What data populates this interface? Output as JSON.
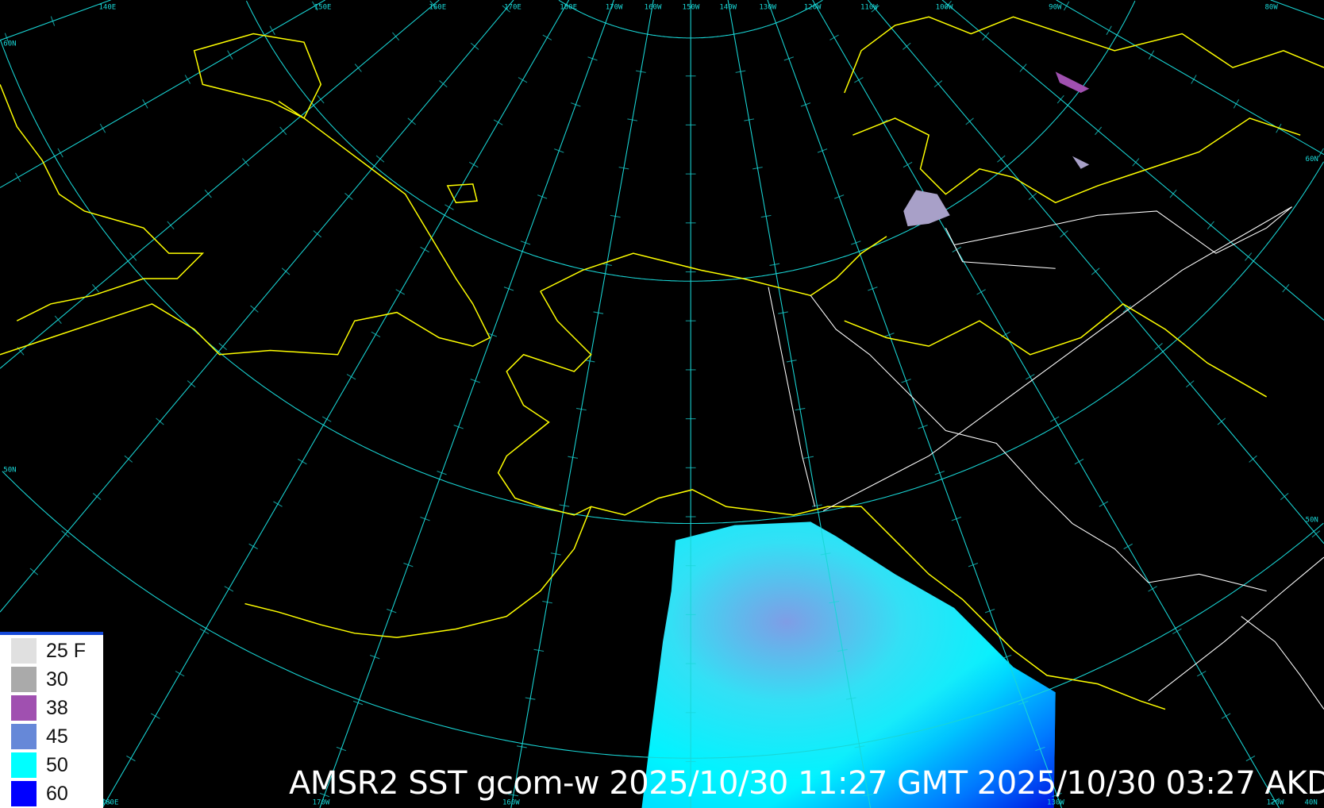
{
  "title": "AMSR2 SST gcom-w 2025/10/30 11:27 GMT 2025/10/30 03:27 AKDT",
  "legend": {
    "items": [
      {
        "label": "25 F",
        "color": "#e0e0e0"
      },
      {
        "label": "30",
        "color": "#aaaaaa"
      },
      {
        "label": "38",
        "color": "#a050b0"
      },
      {
        "label": "45",
        "color": "#6688d8"
      },
      {
        "label": "50",
        "color": "#00ffff"
      },
      {
        "label": "60",
        "color": "#0000ff"
      }
    ],
    "accent": "#1448d8"
  },
  "map": {
    "projection": "polar stereographic",
    "graticule_color": "#19d6d6",
    "coastline_color": "#ffff00",
    "border_color": "#ffffff",
    "meridians": [
      150,
      160,
      170,
      180,
      -170,
      -160,
      -150,
      -140,
      -130,
      -120,
      -110,
      -100,
      -90,
      -80,
      -70,
      -60,
      140,
      130,
      120
    ],
    "parallels": [
      80,
      70,
      60,
      50
    ],
    "top_labels": [
      "140E",
      "150E",
      "160E",
      "170E",
      "180E",
      "170W",
      "160W",
      "150W",
      "140W",
      "130W",
      "120W",
      "110W",
      "100W",
      "90W",
      "80W"
    ],
    "bottom_labels": [
      "180E",
      "170W",
      "160W",
      "130W",
      "120W",
      "40N"
    ],
    "left_labels": [
      "60N",
      "50N"
    ],
    "right_labels": [
      "60N",
      "50N"
    ]
  }
}
